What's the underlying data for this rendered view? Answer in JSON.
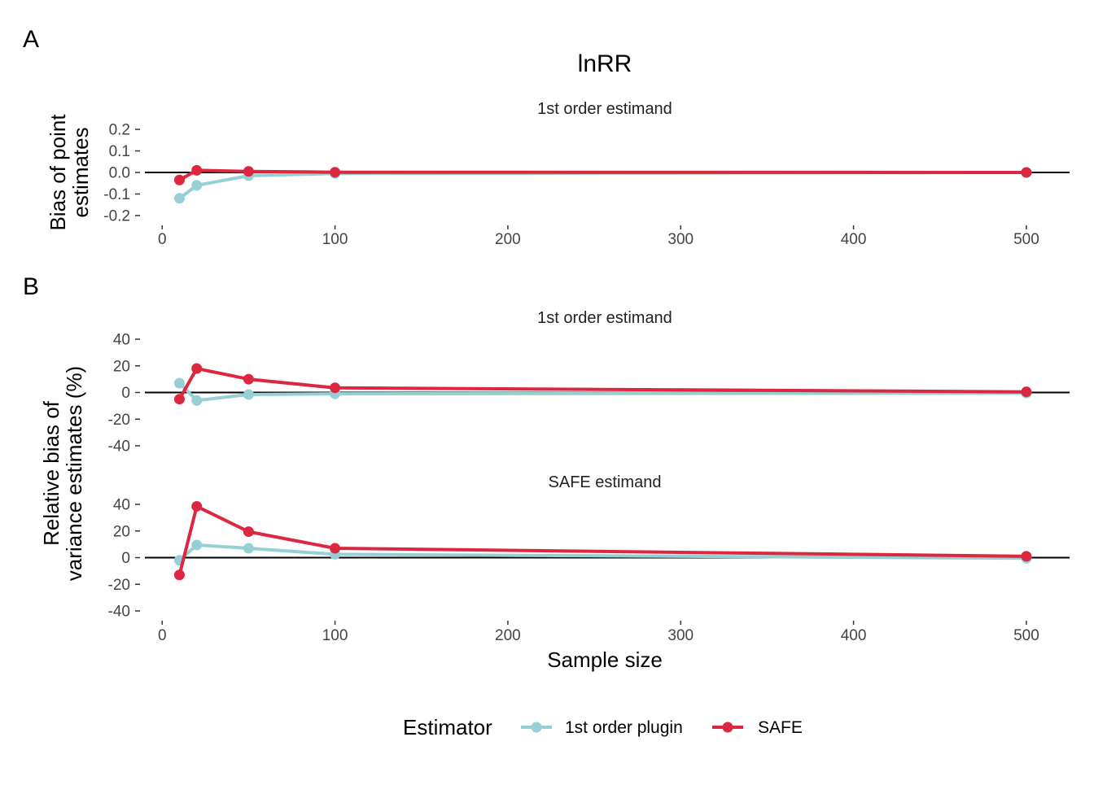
{
  "title": "lnRR",
  "panel_tags": [
    "A",
    "B"
  ],
  "xlabel": "Sample size",
  "legend": {
    "title": "Estimator",
    "entries": [
      {
        "label": "1st order plugin",
        "color": "#96d0d4"
      },
      {
        "label": "SAFE",
        "color": "#dc2740"
      }
    ],
    "placement": "bottom"
  },
  "chart_data": [
    {
      "type": "line",
      "panel": "A",
      "strip": "1st order estimand",
      "ylabel_lines": [
        "Bias of point",
        "estimates"
      ],
      "xlim": [
        -10,
        525
      ],
      "ylim": [
        -0.2,
        0.2
      ],
      "xticks": [
        0,
        100,
        200,
        300,
        400,
        500
      ],
      "yticks": [
        0.2,
        0.1,
        0.0,
        -0.1,
        -0.2
      ],
      "ytick_labels": [
        "0.2",
        "0.1",
        "0.0",
        "-0.1",
        "-0.2"
      ],
      "hline": 0,
      "grid": false,
      "x": [
        10,
        20,
        50,
        100,
        500
      ],
      "series": [
        {
          "name": "1st order plugin",
          "color": "#96d0d4",
          "values": [
            -0.12,
            -0.06,
            -0.015,
            -0.005,
            0.0
          ]
        },
        {
          "name": "SAFE",
          "color": "#dc2740",
          "values": [
            -0.035,
            0.01,
            0.005,
            0.001,
            0.0
          ]
        }
      ]
    },
    {
      "type": "line",
      "panel": "B",
      "strip": "1st order estimand",
      "xlim": [
        -10,
        525
      ],
      "ylim": [
        -40,
        40
      ],
      "xticks": [],
      "yticks": [
        40,
        20,
        0,
        -20,
        -40
      ],
      "ytick_labels": [
        "40",
        "20",
        "0",
        "-20",
        "-40"
      ],
      "hline": 0,
      "grid": false,
      "x": [
        10,
        20,
        50,
        100,
        500
      ],
      "series": [
        {
          "name": "1st order plugin",
          "color": "#96d0d4",
          "values": [
            7,
            -6,
            -1.5,
            -1,
            -0.5
          ]
        },
        {
          "name": "SAFE",
          "color": "#dc2740",
          "values": [
            -5,
            18,
            10,
            3.5,
            0.5
          ]
        }
      ]
    },
    {
      "type": "line",
      "panel": "B",
      "strip": "SAFE estimand",
      "ylabel_lines": [
        "Relative bias of",
        "variance estimates (%)"
      ],
      "xlim": [
        -10,
        525
      ],
      "ylim": [
        -40,
        40
      ],
      "xticks": [
        0,
        100,
        200,
        300,
        400,
        500
      ],
      "yticks": [
        40,
        20,
        0,
        -20,
        -40
      ],
      "ytick_labels": [
        "40",
        "20",
        "0",
        "-20",
        "-40"
      ],
      "hline": 0,
      "grid": false,
      "x": [
        10,
        20,
        50,
        100,
        500
      ],
      "series": [
        {
          "name": "1st order plugin",
          "color": "#96d0d4",
          "values": [
            -2,
            9.5,
            7,
            2.5,
            -0.5
          ]
        },
        {
          "name": "SAFE",
          "color": "#dc2740",
          "values": [
            -13,
            38.5,
            19.5,
            7,
            1
          ]
        }
      ]
    }
  ]
}
